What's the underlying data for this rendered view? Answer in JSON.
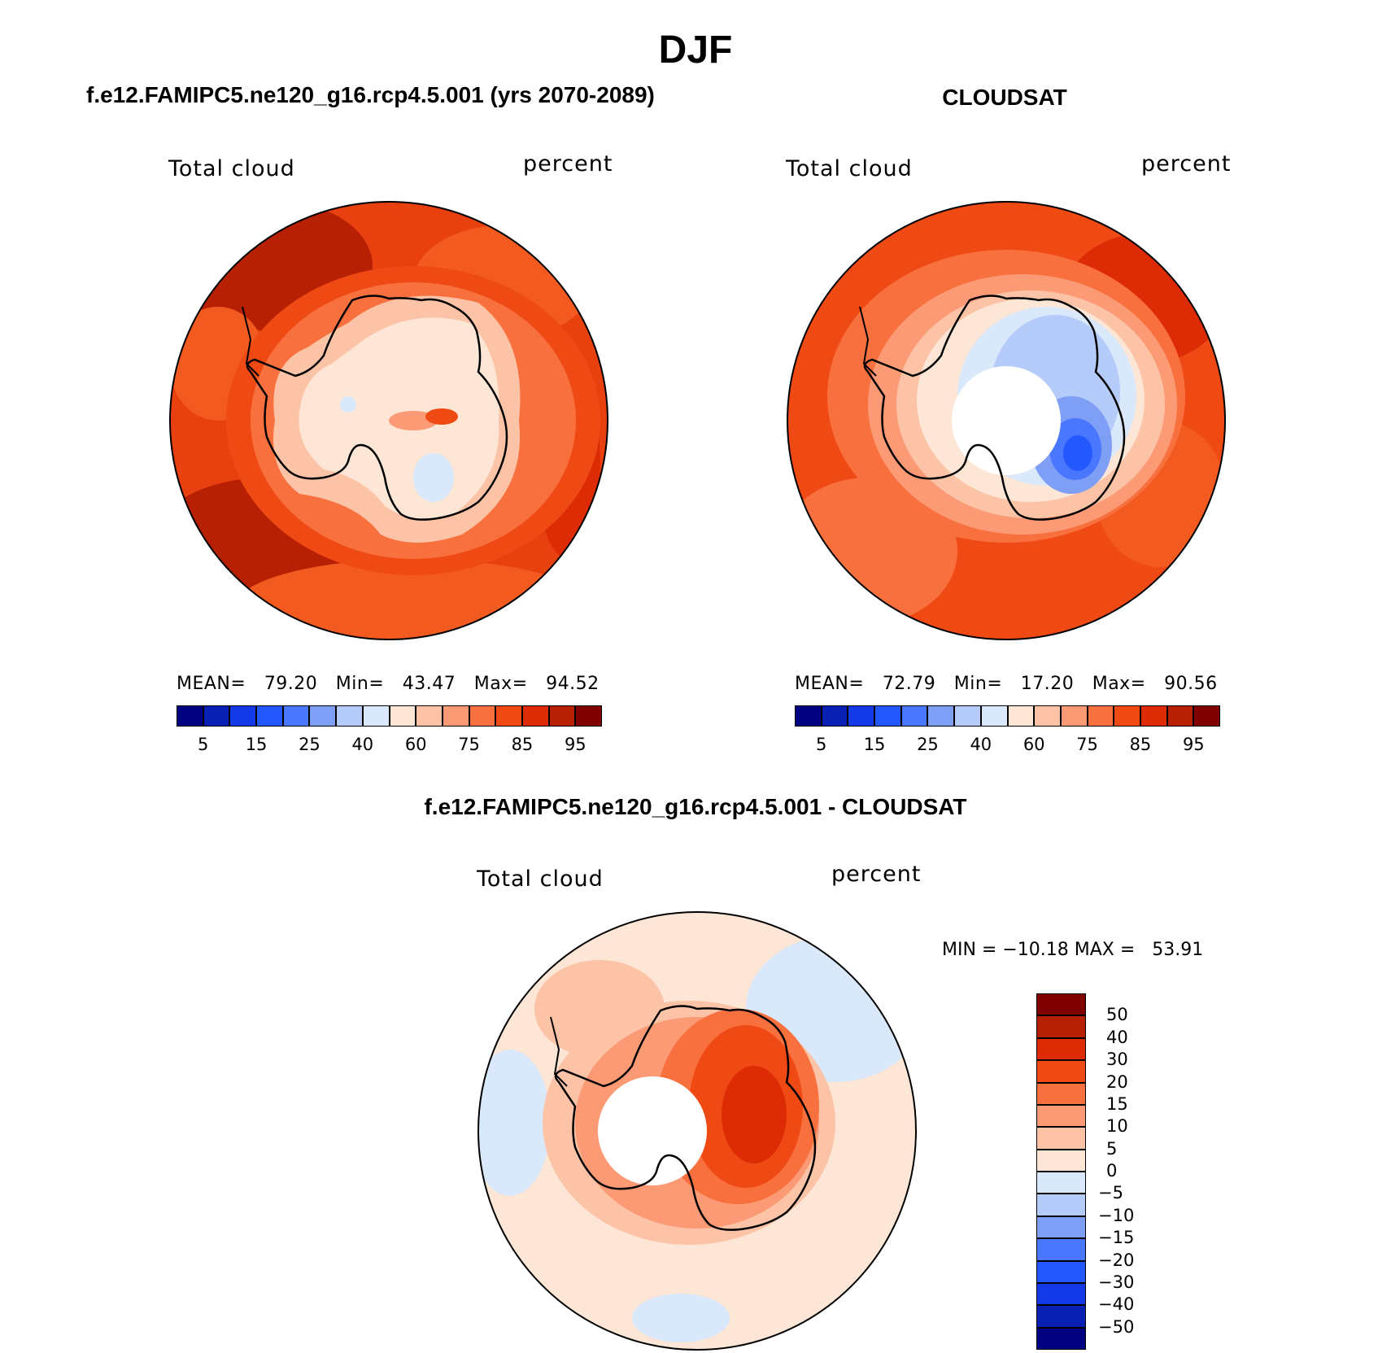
{
  "title": "DJF",
  "colors": {
    "abs_scale": [
      "#000080",
      "#0a1fb4",
      "#1439e6",
      "#2458ff",
      "#4a77ff",
      "#7e9ff5",
      "#b5cbfa",
      "#d9e8fb",
      "#fde6d5",
      "#fcc3a6",
      "#fb9a74",
      "#f9703f",
      "#f04a14",
      "#dd2c05",
      "#b82003",
      "#800000"
    ],
    "diff_scale": [
      "#000080",
      "#0a1fb4",
      "#1439e6",
      "#2458ff",
      "#4a77ff",
      "#7e9ff5",
      "#b5cbfa",
      "#d9e8fb",
      "#fde6d5",
      "#fcc3a6",
      "#fb9a74",
      "#f9703f",
      "#f04a14",
      "#dd2c05",
      "#b82003",
      "#800000"
    ],
    "coast": "#000000"
  },
  "panels": {
    "model": {
      "header": "f.e12.FAMIPC5.ne120_g16.rcp4.5.001 (yrs 2070-2089)",
      "left_label": "Total cloud",
      "right_label": "percent",
      "stats": {
        "mean_label": "MEAN=",
        "mean": "79.20",
        "min_label": "Min=",
        "min": "43.47",
        "max_label": "Max=",
        "max": "94.52"
      },
      "colorbar_ticks": [
        "5",
        "15",
        "25",
        "40",
        "60",
        "75",
        "85",
        "95"
      ]
    },
    "obs": {
      "header": "CLOUDSAT",
      "left_label": "Total cloud",
      "right_label": "percent",
      "stats": {
        "mean_label": "MEAN=",
        "mean": "72.79",
        "min_label": "Min=",
        "min": "17.20",
        "max_label": "Max=",
        "max": "90.56"
      },
      "colorbar_ticks": [
        "5",
        "15",
        "25",
        "40",
        "60",
        "75",
        "85",
        "95"
      ]
    },
    "diff": {
      "header": "f.e12.FAMIPC5.ne120_g16.rcp4.5.001 - CLOUDSAT",
      "left_label": "Total cloud",
      "right_label": "percent",
      "minmax": "MIN = −10.18 MAX =   53.91",
      "colorbar_ticks": [
        "50",
        "40",
        "30",
        "20",
        "15",
        "10",
        "5",
        "0",
        "−5",
        "−10",
        "−15",
        "−20",
        "−30",
        "−40",
        "−50"
      ]
    }
  }
}
